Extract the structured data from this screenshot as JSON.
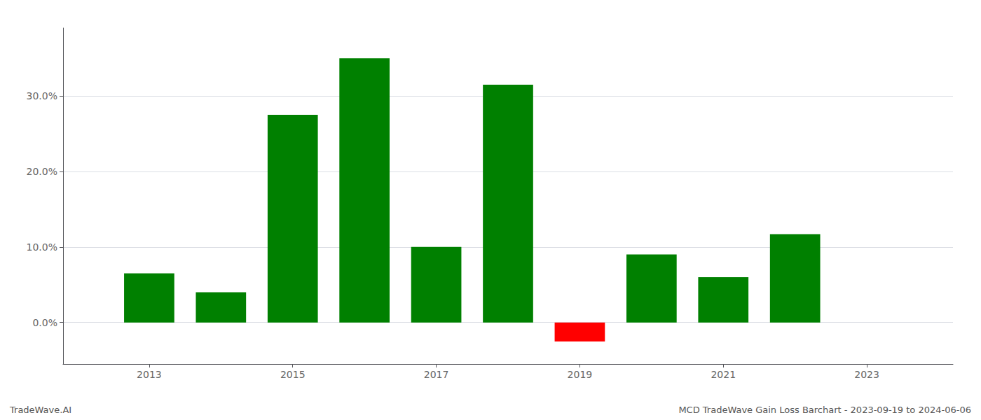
{
  "chart_data": {
    "type": "bar",
    "x": [
      2013,
      2014,
      2015,
      2016,
      2017,
      2018,
      2019,
      2020,
      2021,
      2022,
      2023
    ],
    "values": [
      0.065,
      0.04,
      0.275,
      0.35,
      0.1,
      0.315,
      -0.025,
      0.09,
      0.06,
      0.117,
      0.0
    ],
    "colors": [
      "#008000",
      "#008000",
      "#008000",
      "#008000",
      "#008000",
      "#008000",
      "#ff0000",
      "#008000",
      "#008000",
      "#008000",
      "#008000"
    ],
    "xlim": [
      2011.8,
      2024.2
    ],
    "xticks": [
      2013,
      2015,
      2017,
      2019,
      2021,
      2023
    ],
    "ylim": [
      -0.055,
      0.39
    ],
    "yticks": [
      {
        "value": 0.0,
        "label": "0.0%"
      },
      {
        "value": 0.1,
        "label": "10.0%"
      },
      {
        "value": 0.2,
        "label": "20.0%"
      },
      {
        "value": 0.3,
        "label": "30.0%"
      }
    ],
    "grid": true,
    "annotations": [
      "TradeWave.AI",
      "MCD TradeWave Gain Loss Barchart - 2023-09-19 to 2024-06-06"
    ]
  }
}
